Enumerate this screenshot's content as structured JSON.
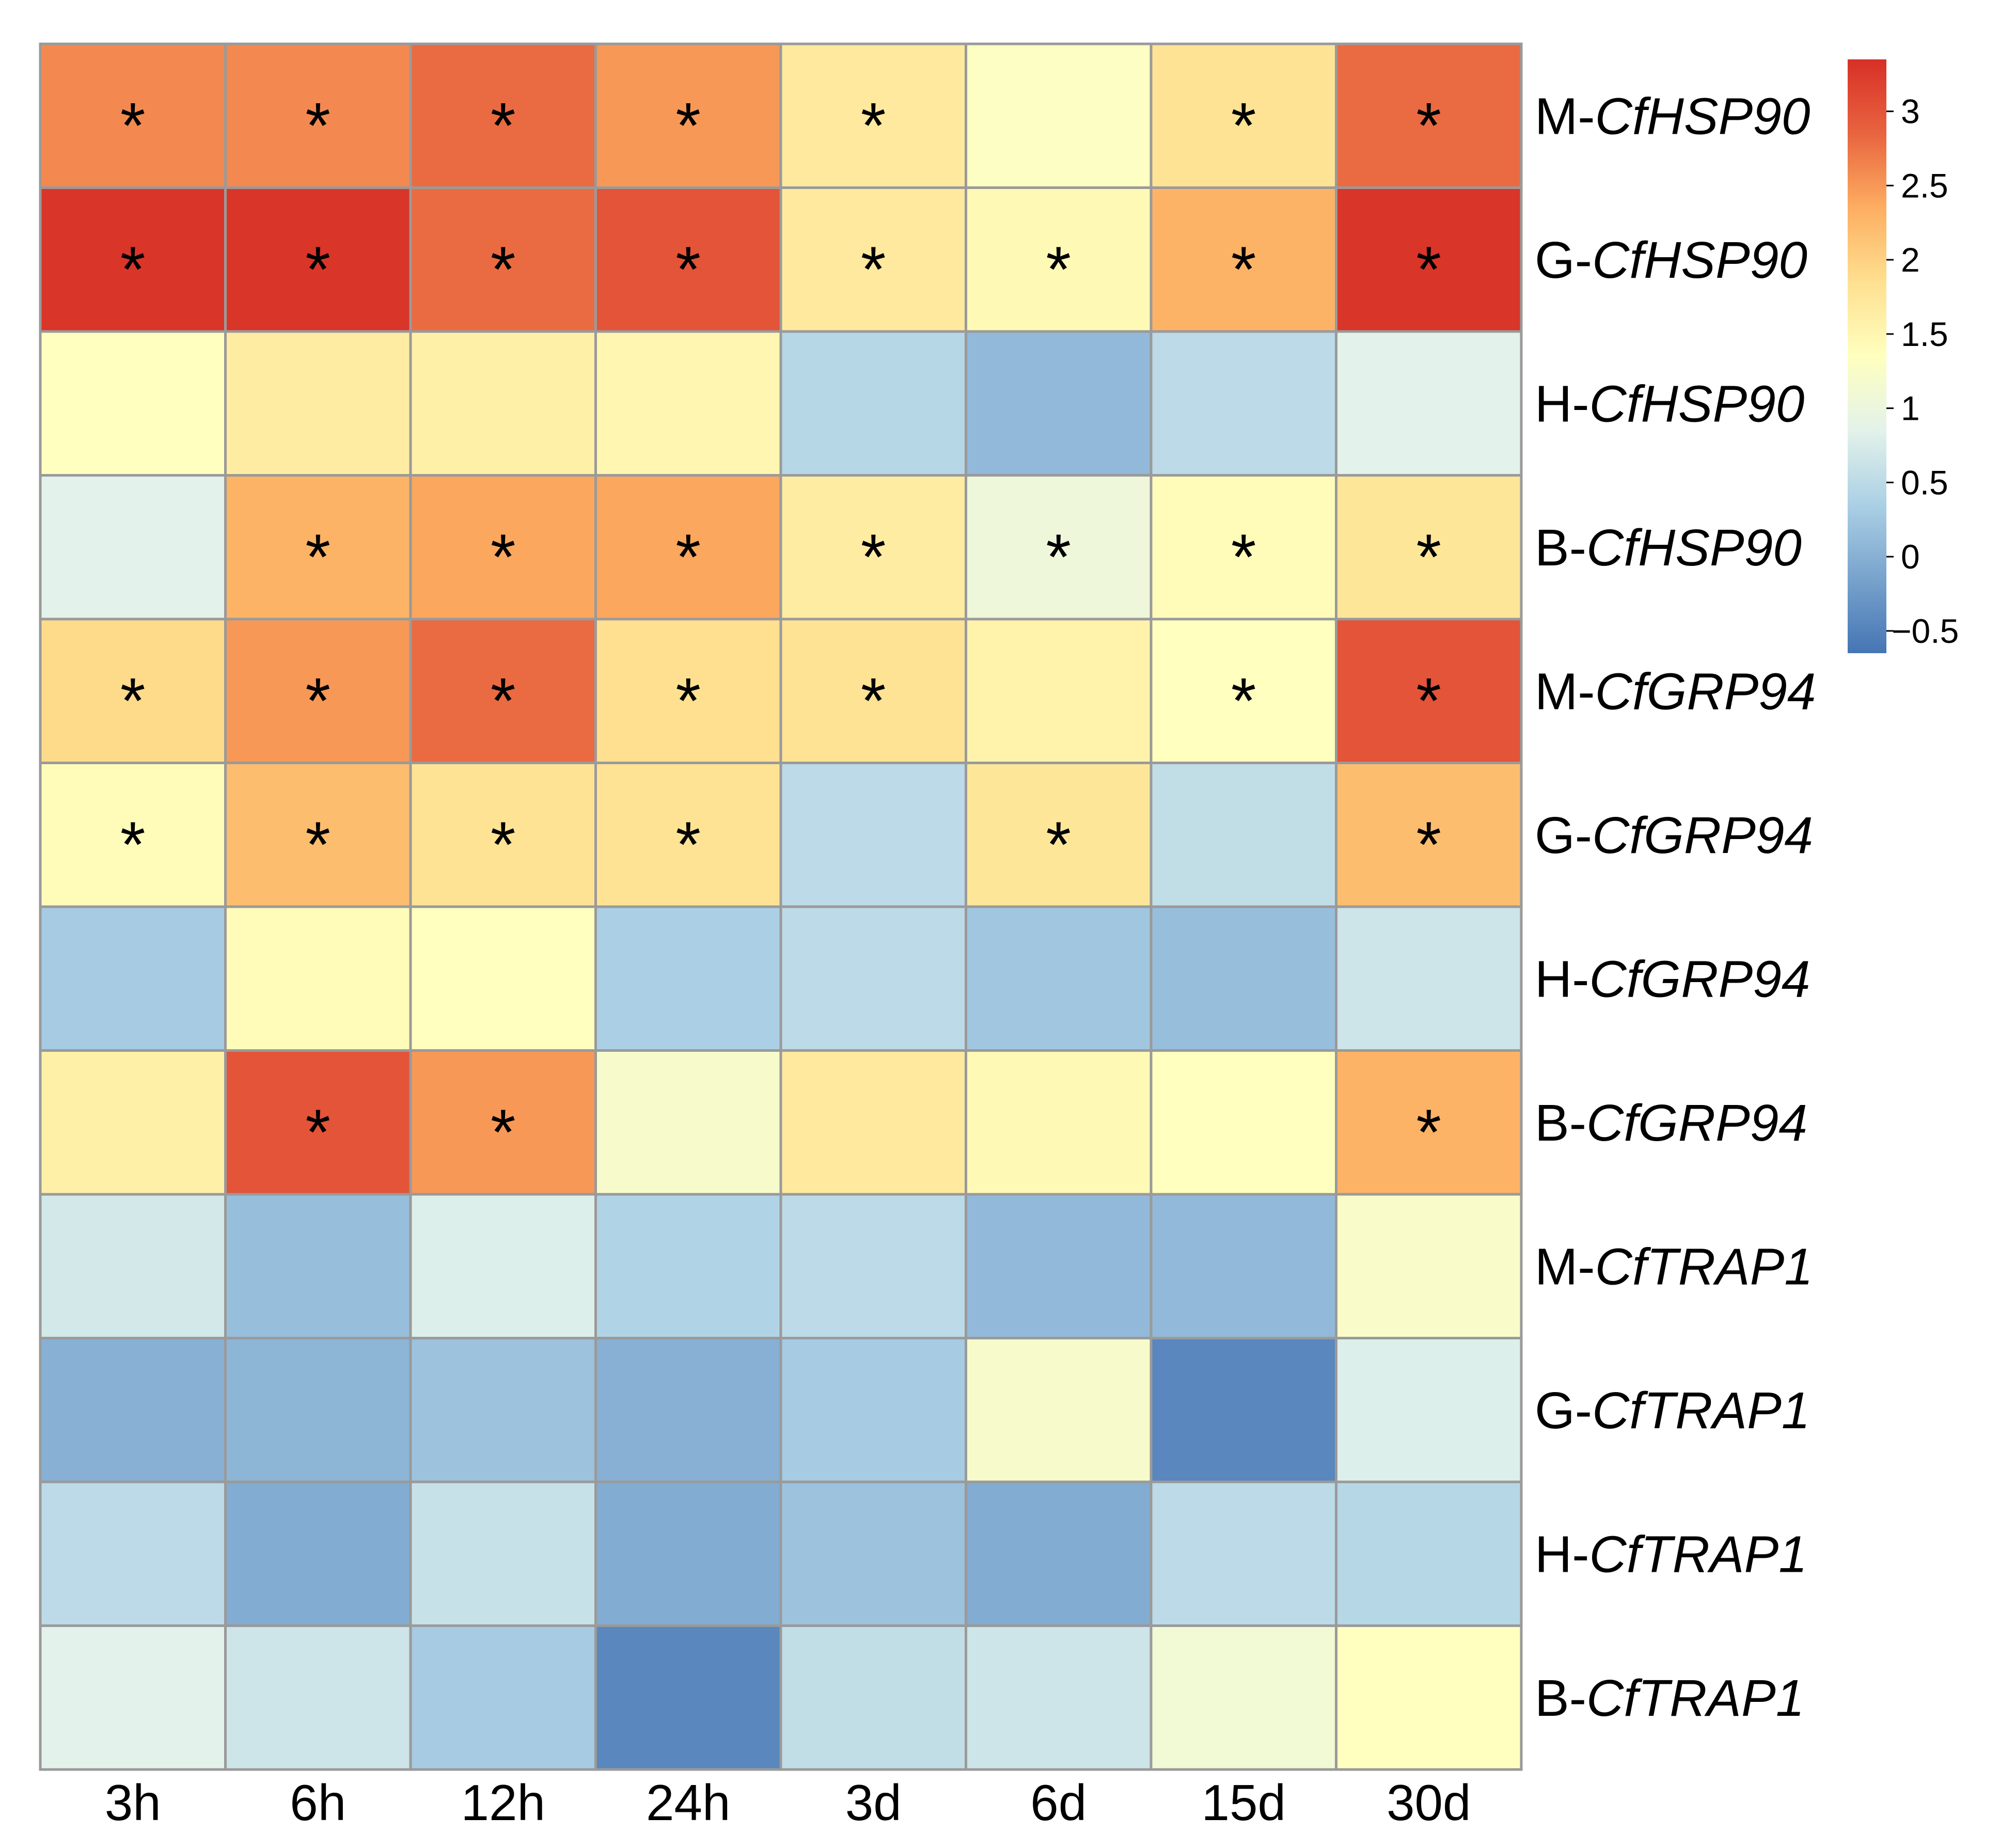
{
  "chart_data": {
    "type": "heatmap",
    "title": "",
    "xlabel": "",
    "ylabel": "",
    "columns": [
      "3h",
      "6h",
      "12h",
      "24h",
      "3d",
      "6d",
      "15d",
      "30d"
    ],
    "rows": [
      {
        "prefix": "M-",
        "gene": "CfHSP90"
      },
      {
        "prefix": "G-",
        "gene": "CfHSP90"
      },
      {
        "prefix": "H-",
        "gene": "CfHSP90"
      },
      {
        "prefix": "B-",
        "gene": "CfHSP90"
      },
      {
        "prefix": "M-",
        "gene": "CfGRP94"
      },
      {
        "prefix": "G-",
        "gene": "CfGRP94"
      },
      {
        "prefix": "H-",
        "gene": "CfGRP94"
      },
      {
        "prefix": "B-",
        "gene": "CfGRP94"
      },
      {
        "prefix": "M-",
        "gene": "CfTRAP1"
      },
      {
        "prefix": "G-",
        "gene": "CfTRAP1"
      },
      {
        "prefix": "H-",
        "gene": "CfTRAP1"
      },
      {
        "prefix": "B-",
        "gene": "CfTRAP1"
      }
    ],
    "values": [
      [
        2.6,
        2.6,
        2.8,
        2.5,
        1.7,
        1.3,
        1.8,
        2.8
      ],
      [
        3.3,
        3.3,
        2.8,
        3.0,
        1.7,
        1.45,
        2.3,
        3.3
      ],
      [
        1.35,
        1.65,
        1.6,
        1.5,
        0.45,
        0.1,
        0.5,
        0.85
      ],
      [
        0.85,
        2.3,
        2.4,
        2.4,
        1.65,
        1.05,
        1.4,
        1.75
      ],
      [
        1.9,
        2.5,
        2.8,
        1.85,
        1.8,
        1.55,
        1.35,
        3.0
      ],
      [
        1.4,
        2.2,
        1.8,
        1.8,
        0.5,
        1.75,
        0.55,
        2.2
      ],
      [
        0.3,
        1.4,
        1.35,
        0.35,
        0.5,
        0.25,
        0.15,
        0.65
      ],
      [
        1.6,
        3.0,
        2.5,
        1.2,
        1.7,
        1.45,
        1.35,
        2.3
      ],
      [
        0.7,
        0.15,
        0.8,
        0.4,
        0.5,
        0.1,
        0.1,
        1.25
      ],
      [
        0.0,
        0.05,
        0.2,
        0.0,
        0.3,
        1.2,
        -0.45,
        0.8
      ],
      [
        0.5,
        -0.05,
        0.6,
        -0.05,
        0.2,
        -0.05,
        0.5,
        0.45
      ],
      [
        0.85,
        0.65,
        0.3,
        -0.45,
        0.55,
        0.65,
        1.1,
        1.35
      ]
    ],
    "significance": [
      [
        1,
        1,
        1,
        1,
        1,
        0,
        1,
        1
      ],
      [
        1,
        1,
        1,
        1,
        1,
        1,
        1,
        1
      ],
      [
        0,
        0,
        0,
        0,
        0,
        0,
        0,
        0
      ],
      [
        0,
        1,
        1,
        1,
        1,
        1,
        1,
        1
      ],
      [
        1,
        1,
        1,
        1,
        1,
        0,
        1,
        1
      ],
      [
        1,
        1,
        1,
        1,
        0,
        1,
        0,
        1
      ],
      [
        0,
        0,
        0,
        0,
        0,
        0,
        0,
        0
      ],
      [
        0,
        1,
        1,
        0,
        0,
        0,
        0,
        1
      ],
      [
        0,
        0,
        0,
        0,
        0,
        0,
        0,
        0
      ],
      [
        0,
        0,
        0,
        0,
        0,
        0,
        0,
        0
      ],
      [
        0,
        0,
        0,
        0,
        0,
        0,
        0,
        0
      ],
      [
        0,
        0,
        0,
        0,
        0,
        0,
        0,
        0
      ]
    ],
    "significance_marker": "*",
    "legend": {
      "placement": "right",
      "range": [
        -0.65,
        3.35
      ],
      "ticks": [
        {
          "value": 3,
          "label": "3"
        },
        {
          "value": 2.5,
          "label": "2.5"
        },
        {
          "value": 2,
          "label": "2"
        },
        {
          "value": 1.5,
          "label": "1.5"
        },
        {
          "value": 1,
          "label": "1"
        },
        {
          "value": 0.5,
          "label": "0.5"
        },
        {
          "value": 0,
          "label": "0"
        },
        {
          "value": -0.5,
          "label": "−0.5"
        }
      ],
      "colormap": [
        {
          "value": -0.65,
          "color": "#4575b4"
        },
        {
          "value": 0.35,
          "color": "#abd0e5"
        },
        {
          "value": 0.85,
          "color": "#e3f2ea"
        },
        {
          "value": 1.35,
          "color": "#ffffbf"
        },
        {
          "value": 1.85,
          "color": "#fee090"
        },
        {
          "value": 2.35,
          "color": "#fdae61"
        },
        {
          "value": 2.85,
          "color": "#e8643f"
        },
        {
          "value": 3.35,
          "color": "#d73027"
        }
      ]
    }
  }
}
